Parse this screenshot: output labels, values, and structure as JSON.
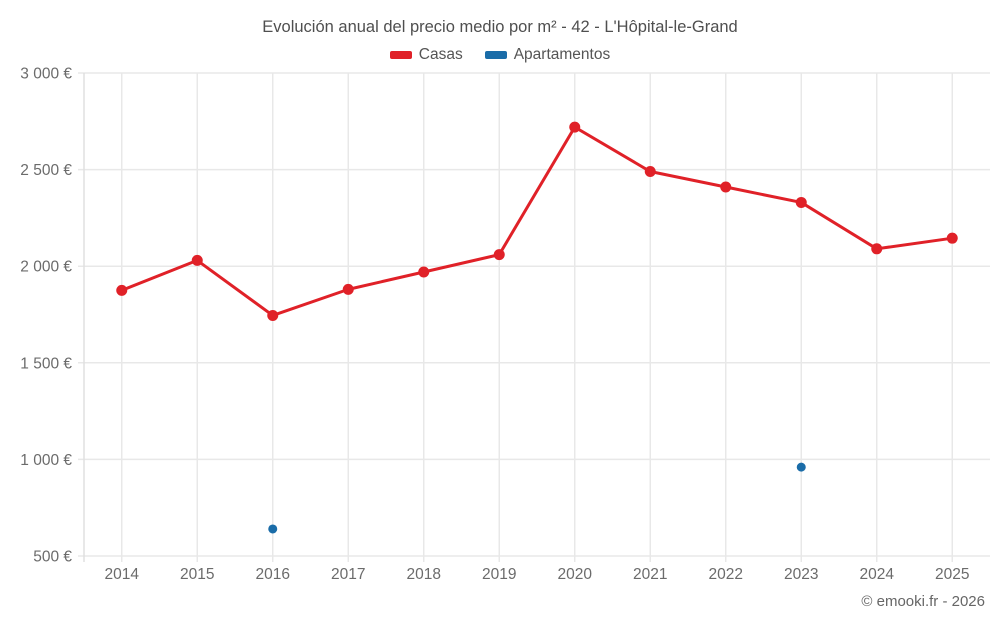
{
  "header": {
    "title": "Evolución anual del precio medio por m² - 42 - L'Hôpital-le-Grand",
    "legend": [
      {
        "label": "Casas",
        "color": "#e02128"
      },
      {
        "label": "Apartamentos",
        "color": "#1a6ca8"
      }
    ]
  },
  "footer": {
    "credit": "© emooki.fr - 2026"
  },
  "colors": {
    "casas": "#e02128",
    "apartamentos": "#1a6ca8",
    "grid": "#e8e8e8",
    "axis": "#e0e0e0",
    "tick_text": "#6b6b6b"
  },
  "chart_data": {
    "type": "line",
    "title": "Evolución anual del precio medio por m² - 42 - L'Hôpital-le-Grand",
    "categories": [
      "2014",
      "2015",
      "2016",
      "2017",
      "2018",
      "2019",
      "2020",
      "2021",
      "2022",
      "2023",
      "2024",
      "2025"
    ],
    "series": [
      {
        "name": "Casas",
        "color": "#e02128",
        "draw_line": true,
        "marker_radius": 5.5,
        "values": [
          1875,
          2030,
          1745,
          1880,
          1970,
          2060,
          2720,
          2490,
          2410,
          2330,
          2090,
          2145
        ]
      },
      {
        "name": "Apartamentos",
        "color": "#1a6ca8",
        "draw_line": false,
        "marker_radius": 4.5,
        "values": [
          null,
          null,
          640,
          null,
          null,
          null,
          null,
          null,
          null,
          960,
          null,
          null
        ]
      }
    ],
    "ylabel": "",
    "xlabel": "",
    "ylim": [
      500,
      3000
    ],
    "y_ticks": [
      {
        "value": 500,
        "label": "500 €"
      },
      {
        "value": 1000,
        "label": "1 000 €"
      },
      {
        "value": 1500,
        "label": "1 500 €"
      },
      {
        "value": 2000,
        "label": "2 000 €"
      },
      {
        "value": 2500,
        "label": "2 500 €"
      },
      {
        "value": 3000,
        "label": "3 000 €"
      }
    ],
    "grid": true,
    "legend_position": "top",
    "annotations": [
      "© emooki.fr - 2026"
    ]
  }
}
